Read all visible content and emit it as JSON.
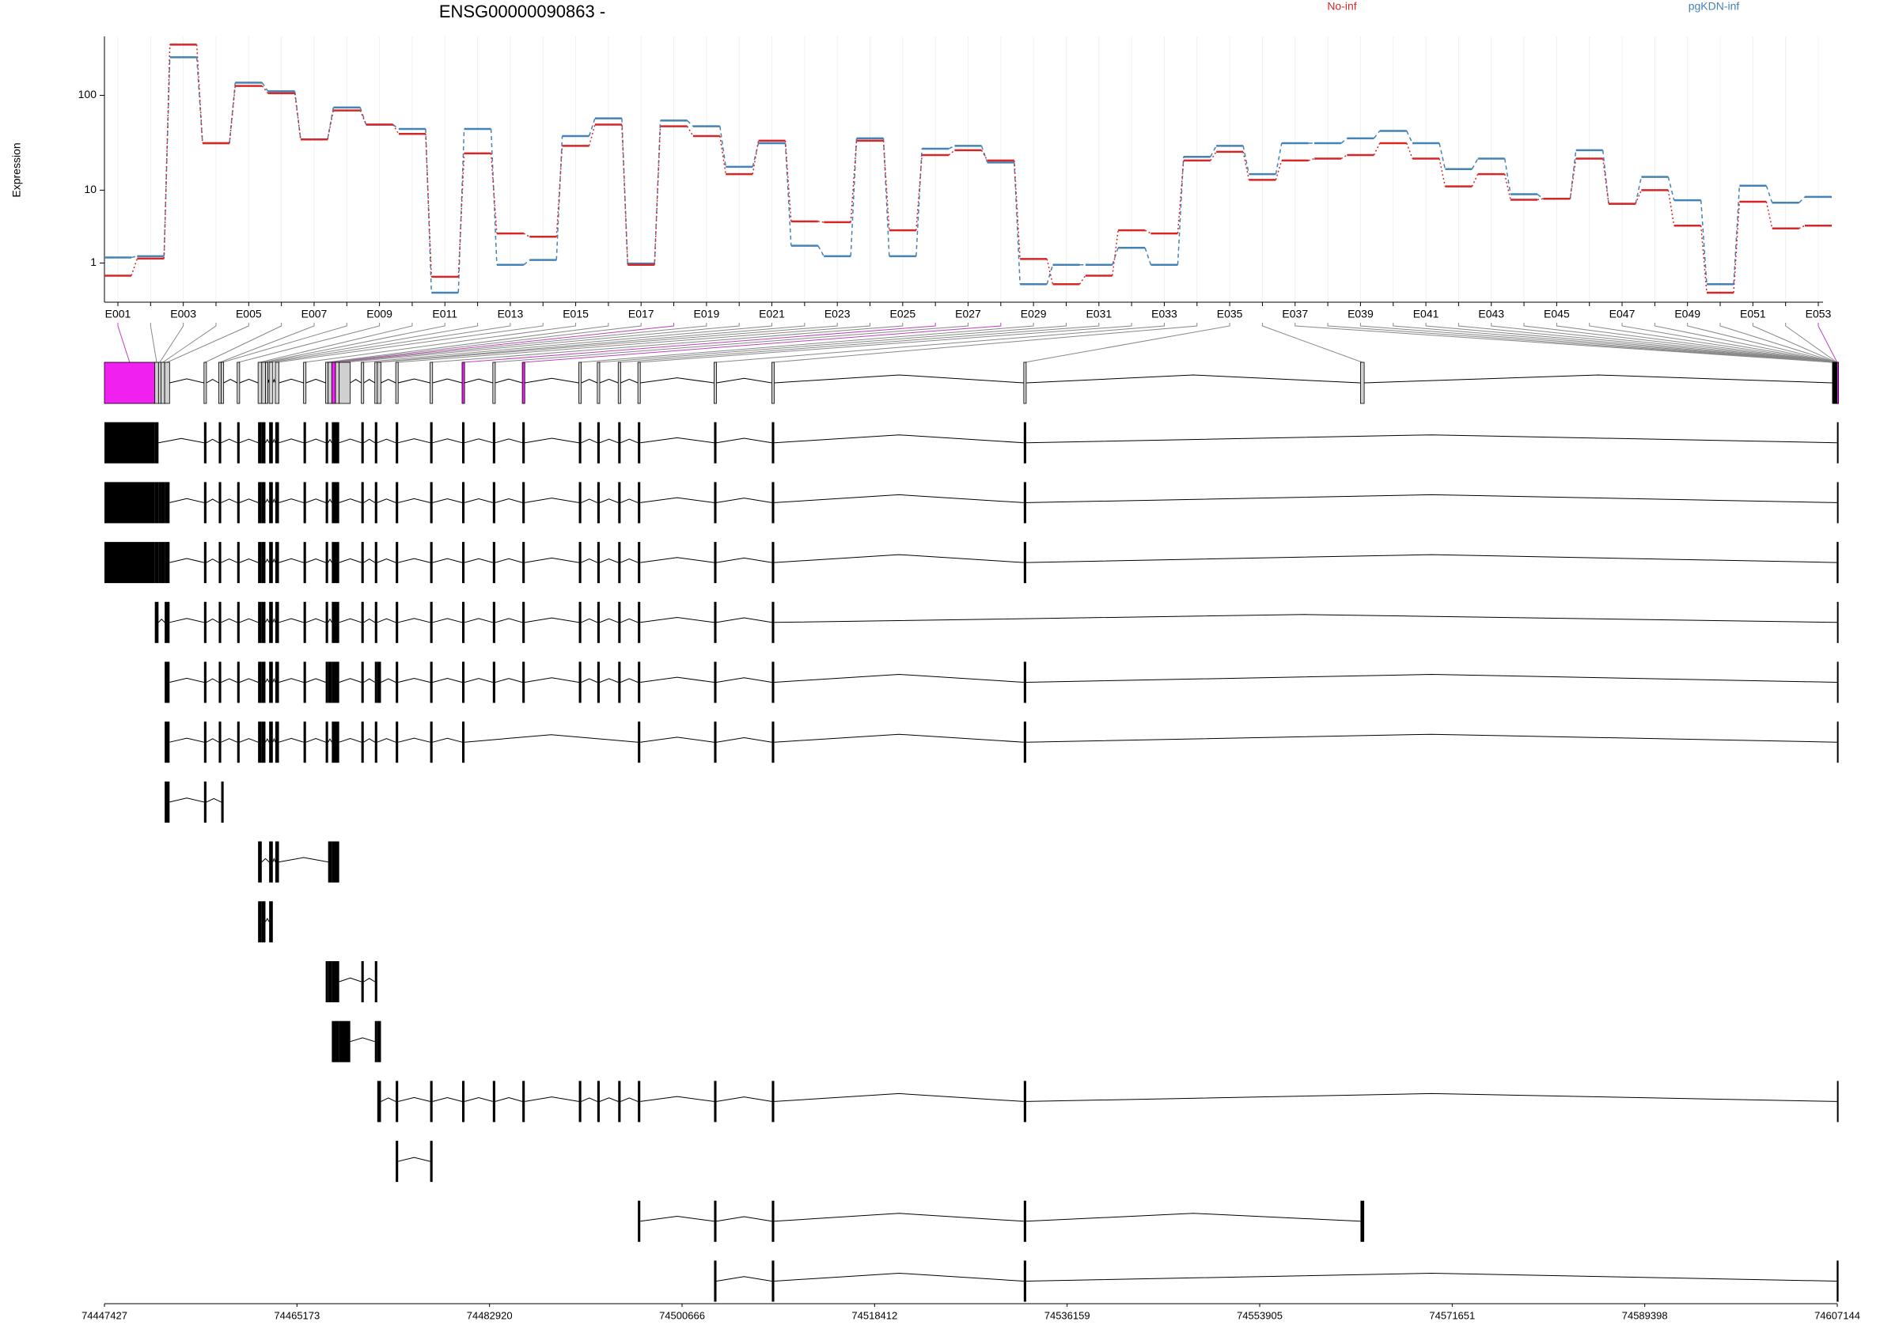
{
  "chart_data": {
    "type": "line",
    "title": "ENSG00000090863 -",
    "y_label": "Expression",
    "yscale": "log1p",
    "legend": "top-right",
    "categories": [
      "E001",
      null,
      "E003",
      null,
      "E005",
      null,
      "E007",
      null,
      "E009",
      null,
      "E011",
      null,
      "E013",
      null,
      "E015",
      null,
      "E017",
      null,
      "E019",
      null,
      "E021",
      null,
      "E023",
      null,
      "E025",
      null,
      "E027",
      null,
      "E029",
      null,
      "E031",
      null,
      "E033",
      null,
      "E035",
      null,
      "E037",
      null,
      "E039",
      null,
      "E041",
      null,
      "E043",
      null,
      "E045",
      null,
      "E047",
      null,
      "E049",
      null,
      "E051",
      null,
      "E053"
    ],
    "series": [
      {
        "name": "No-inf",
        "color": "#d62728",
        "values": [
          0.49,
          1.22,
          330,
          32,
          125,
          105,
          35,
          70,
          50,
          40,
          0.45,
          25,
          3.0,
          2.7,
          30,
          50,
          0.92,
          48,
          38,
          15,
          34,
          4.3,
          4.2,
          34,
          3.3,
          24,
          27,
          21,
          1.2,
          0.22,
          0.49,
          3.3,
          3.0,
          21,
          26,
          13,
          21,
          22,
          24,
          32,
          22,
          11,
          15,
          7.8,
          8,
          22,
          7,
          10,
          3.8,
          0,
          7.4,
          3.5,
          3.8
        ]
      },
      {
        "name": "pgKDN-inf",
        "color": "#4682b4",
        "values": [
          1.28,
          1.35,
          245,
          32,
          135,
          110,
          35,
          75,
          50,
          45,
          0,
          45,
          0.92,
          1.15,
          38,
          58,
          0.98,
          55,
          48,
          18,
          32,
          2.0,
          1.35,
          36,
          1.35,
          28,
          30,
          20,
          0.22,
          0.92,
          0.92,
          1.86,
          0.92,
          23,
          30,
          15,
          32,
          32,
          36,
          43,
          32,
          17,
          22,
          9,
          8,
          27,
          7,
          14,
          7.7,
          0.22,
          11.2,
          7.2,
          8.4
        ]
      }
    ],
    "ylim": [
      0,
      400
    ],
    "yticks": [
      1,
      10,
      100
    ]
  },
  "gene_model": {
    "xlim": [
      74447427,
      74607144
    ],
    "xticks": [
      74447427,
      74465173,
      74482920,
      74500666,
      74518412,
      74536159,
      74553905,
      74571651,
      74589398,
      74607144
    ],
    "exons": [
      [
        74447427,
        74452071
      ],
      [
        74452071,
        74452411
      ],
      [
        74452411,
        74452638
      ],
      [
        74452638,
        74452978
      ],
      [
        74452978,
        74453431
      ],
      [
        74456603,
        74456829
      ],
      [
        74457962,
        74458189
      ],
      [
        74458189,
        74458415
      ],
      [
        74459661,
        74459888
      ],
      [
        74461587,
        74461927
      ],
      [
        74461927,
        74462267
      ],
      [
        74462267,
        74462493
      ],
      [
        74462607,
        74462946
      ],
      [
        74463173,
        74463513
      ],
      [
        74465778,
        74466005
      ],
      [
        74467817,
        74468044
      ],
      [
        74468044,
        74468384
      ],
      [
        74468384,
        74468724
      ],
      [
        74468724,
        74469063
      ],
      [
        74469063,
        74470083
      ],
      [
        74471103,
        74471329
      ],
      [
        74472349,
        74472575
      ],
      [
        74472575,
        74472915
      ],
      [
        74474274,
        74474501
      ],
      [
        74477446,
        74477673
      ],
      [
        74480391,
        74480618
      ],
      [
        74483223,
        74483450
      ],
      [
        74485942,
        74486169
      ],
      [
        74491153,
        74491380
      ],
      [
        74492852,
        74493079
      ],
      [
        74494778,
        74495005
      ],
      [
        74496591,
        74496817
      ],
      [
        74503614,
        74503840
      ],
      [
        74508938,
        74509165
      ],
      [
        74532160,
        74532387
      ],
      [
        74563199,
        74563539
      ],
      [
        74606700,
        74606720
      ],
      [
        74606726,
        74606746
      ],
      [
        74606752,
        74606772
      ],
      [
        74606778,
        74606798
      ],
      [
        74606804,
        74606824
      ],
      [
        74606830,
        74606850
      ],
      [
        74606856,
        74606876
      ],
      [
        74606882,
        74606902
      ],
      [
        74606908,
        74606928
      ],
      [
        74606934,
        74606954
      ],
      [
        74606960,
        74606980
      ],
      [
        74606986,
        74607006
      ],
      [
        74607012,
        74607032
      ],
      [
        74607038,
        74607058
      ],
      [
        74607064,
        74607084
      ],
      [
        74607090,
        74607110
      ],
      [
        74607116,
        74607144
      ]
    ],
    "significant": [
      0,
      17,
      25,
      27,
      52
    ],
    "transcripts": [
      [
        0,
        1,
        5,
        6,
        8,
        9,
        10,
        12,
        13,
        14,
        15,
        17,
        18,
        20,
        21,
        23,
        24,
        25,
        26,
        27,
        28,
        29,
        30,
        31,
        32,
        33,
        34,
        52
      ],
      [
        0,
        1,
        2,
        3,
        4,
        5,
        6,
        8,
        9,
        10,
        12,
        13,
        14,
        15,
        17,
        18,
        20,
        21,
        23,
        24,
        25,
        26,
        27,
        28,
        29,
        30,
        31,
        32,
        33,
        34,
        52
      ],
      [
        0,
        1,
        2,
        3,
        4,
        5,
        6,
        8,
        9,
        10,
        12,
        13,
        14,
        15,
        17,
        18,
        20,
        21,
        23,
        24,
        25,
        26,
        27,
        28,
        29,
        30,
        31,
        32,
        33,
        34,
        51,
        52
      ],
      [
        1,
        4,
        5,
        6,
        8,
        9,
        10,
        12,
        13,
        14,
        15,
        17,
        18,
        20,
        21,
        23,
        24,
        25,
        26,
        27,
        28,
        29,
        30,
        31,
        32,
        33,
        52
      ],
      [
        4,
        5,
        6,
        8,
        9,
        10,
        12,
        13,
        14,
        15,
        16,
        17,
        18,
        20,
        21,
        22,
        23,
        24,
        25,
        26,
        27,
        28,
        29,
        30,
        31,
        32,
        33,
        34,
        52
      ],
      [
        4,
        5,
        6,
        8,
        9,
        10,
        12,
        13,
        14,
        15,
        17,
        18,
        20,
        21,
        23,
        24,
        25,
        31,
        32,
        33,
        34,
        52
      ],
      [
        4,
        5,
        7
      ],
      [
        9,
        12,
        13,
        16,
        17,
        18
      ],
      [
        9,
        10,
        12
      ],
      [
        15,
        16,
        17,
        18,
        20,
        21
      ],
      [
        17,
        18,
        19,
        21,
        22
      ],
      [
        22,
        23,
        24,
        25,
        26,
        27,
        28,
        29,
        30,
        31,
        32,
        33,
        34,
        52
      ],
      [
        23,
        24
      ],
      [
        31,
        32,
        33,
        34,
        35
      ],
      [
        32,
        33,
        34,
        51,
        52
      ]
    ]
  }
}
